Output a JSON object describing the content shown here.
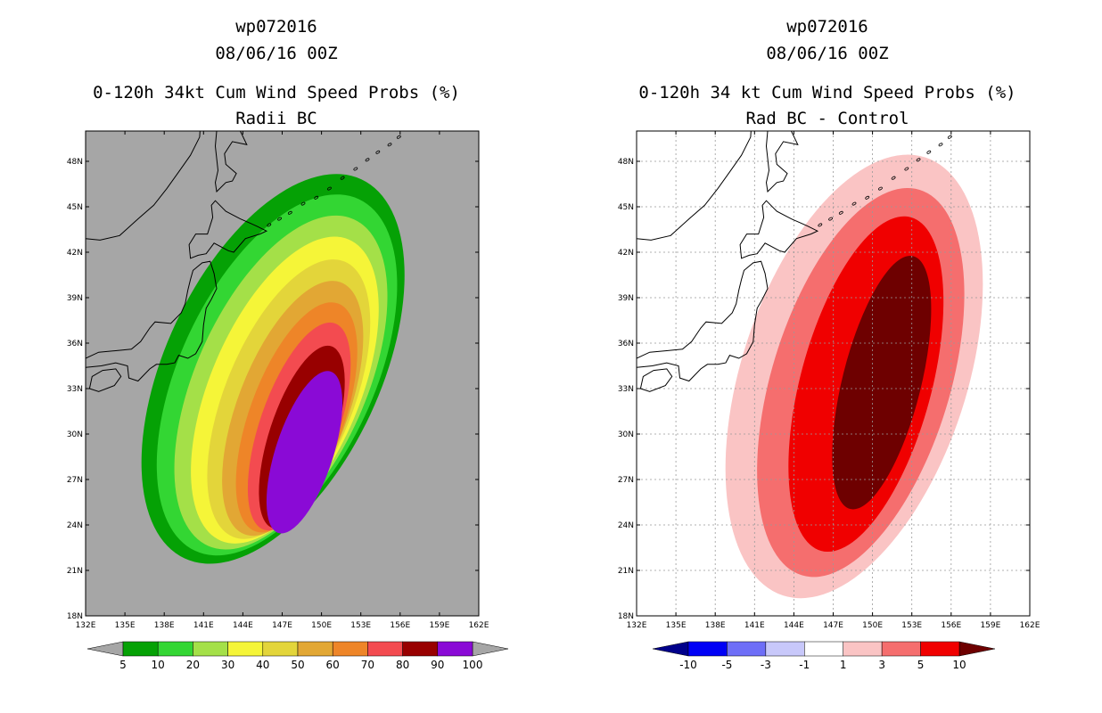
{
  "chart_data": [
    {
      "type": "heatmap",
      "title_lines": [
        "wp072016",
        "08/06/16 00Z",
        "0-120h 34kt Cum Wind Speed Probs (%)",
        "Radii BC"
      ],
      "xlabel": "",
      "ylabel": "",
      "xlim": [
        132,
        162
      ],
      "ylim": [
        18,
        50
      ],
      "x_ticks": [
        132,
        135,
        138,
        141,
        144,
        147,
        150,
        153,
        156,
        159,
        162
      ],
      "x_tick_labels": [
        "132E",
        "135E",
        "138E",
        "141E",
        "144E",
        "147E",
        "150E",
        "153E",
        "156E",
        "159E",
        "162E"
      ],
      "y_ticks": [
        18,
        21,
        24,
        27,
        30,
        33,
        36,
        39,
        42,
        45,
        48
      ],
      "y_tick_labels": [
        "18N",
        "21N",
        "24N",
        "27N",
        "30N",
        "33N",
        "36N",
        "39N",
        "42N",
        "45N",
        "48N"
      ],
      "grid": false,
      "background": "#a6a6a6",
      "colorbar": {
        "labels": [
          "5",
          "10",
          "20",
          "30",
          "40",
          "50",
          "60",
          "70",
          "80",
          "90",
          "100"
        ],
        "colors": [
          "#05a105",
          "#33d633",
          "#a4e048",
          "#f5f538",
          "#e3d53a",
          "#e2a734",
          "#ee8528",
          "#f34b50",
          "#980000",
          "#8a0ad6"
        ],
        "end_colors": [
          "#a6a6a6",
          "#a6a6a6"
        ]
      },
      "levels": [
        {
          "min": 5,
          "color": "#05a105",
          "center": [
            146.3,
            34.3
          ],
          "semi_axes": [
            8.2,
            13.8
          ],
          "angle": 25
        },
        {
          "min": 10,
          "color": "#33d633",
          "center": [
            146.6,
            33.9
          ],
          "semi_axes": [
            7.4,
            12.8
          ],
          "angle": 25
        },
        {
          "min": 20,
          "color": "#a4e048",
          "center": [
            146.9,
            33.4
          ],
          "semi_axes": [
            6.5,
            11.8
          ],
          "angle": 24
        },
        {
          "min": 30,
          "color": "#f5f538",
          "center": [
            147.2,
            32.9
          ],
          "semi_axes": [
            5.7,
            10.8
          ],
          "angle": 23
        },
        {
          "min": 40,
          "color": "#e3d53a",
          "center": [
            147.5,
            32.3
          ],
          "semi_axes": [
            4.9,
            9.8
          ],
          "angle": 22
        },
        {
          "min": 50,
          "color": "#e2a734",
          "center": [
            147.8,
            31.7
          ],
          "semi_axes": [
            4.2,
            8.9
          ],
          "angle": 21
        },
        {
          "min": 60,
          "color": "#ee8528",
          "center": [
            148.1,
            31.1
          ],
          "semi_axes": [
            3.6,
            8.0
          ],
          "angle": 20
        },
        {
          "min": 70,
          "color": "#f34b50",
          "center": [
            148.3,
            30.5
          ],
          "semi_axes": [
            3.0,
            7.2
          ],
          "angle": 19
        },
        {
          "min": 80,
          "color": "#980000",
          "center": [
            148.5,
            29.8
          ],
          "semi_axes": [
            2.5,
            6.3
          ],
          "angle": 18
        },
        {
          "min": 90,
          "color": "#8a0ad6",
          "center": [
            148.7,
            28.8
          ],
          "semi_axes": [
            2.2,
            5.6
          ],
          "angle": 18
        }
      ]
    },
    {
      "type": "heatmap",
      "title_lines": [
        "wp072016",
        "08/06/16 00Z",
        "0-120h 34 kt Cum Wind Speed Probs (%)",
        "Rad BC - Control"
      ],
      "xlabel": "",
      "ylabel": "",
      "xlim": [
        132,
        162
      ],
      "ylim": [
        18,
        50
      ],
      "x_ticks": [
        132,
        135,
        138,
        141,
        144,
        147,
        150,
        153,
        156,
        159,
        162
      ],
      "x_tick_labels": [
        "132E",
        "135E",
        "138E",
        "141E",
        "144E",
        "147E",
        "150E",
        "153E",
        "156E",
        "159E",
        "162E"
      ],
      "y_ticks": [
        18,
        21,
        24,
        27,
        30,
        33,
        36,
        39,
        42,
        45,
        48
      ],
      "y_tick_labels": [
        "18N",
        "21N",
        "24N",
        "27N",
        "30N",
        "33N",
        "36N",
        "39N",
        "42N",
        "45N",
        "48N"
      ],
      "grid": true,
      "background": "#ffffff",
      "colorbar": {
        "labels": [
          "-10",
          "-5",
          "-3",
          "-1",
          "1",
          "3",
          "5",
          "10"
        ],
        "colors": [
          "#0000f5",
          "#6e6ef7",
          "#c8c8fa",
          "#ffffff",
          "#fac4c4",
          "#f56e6e",
          "#f00000"
        ],
        "end_colors": [
          "#00008b",
          "#6e0000"
        ]
      },
      "levels": [
        {
          "min": 1,
          "color": "#fac4c4",
          "center": [
            148.6,
            33.8
          ],
          "semi_axes": [
            8.6,
            15.2
          ],
          "angle": 18
        },
        {
          "min": 3,
          "color": "#f56e6e",
          "center": [
            149.1,
            33.4
          ],
          "semi_axes": [
            6.8,
            13.3
          ],
          "angle": 17
        },
        {
          "min": 5,
          "color": "#f00000",
          "center": [
            149.5,
            33.3
          ],
          "semi_axes": [
            5.0,
            11.4
          ],
          "angle": 15
        },
        {
          "min": 10,
          "color": "#6e0000",
          "center": [
            150.7,
            33.4
          ],
          "semi_axes": [
            3.0,
            8.6
          ],
          "angle": 14
        }
      ]
    }
  ],
  "coastline_color": "#000000"
}
